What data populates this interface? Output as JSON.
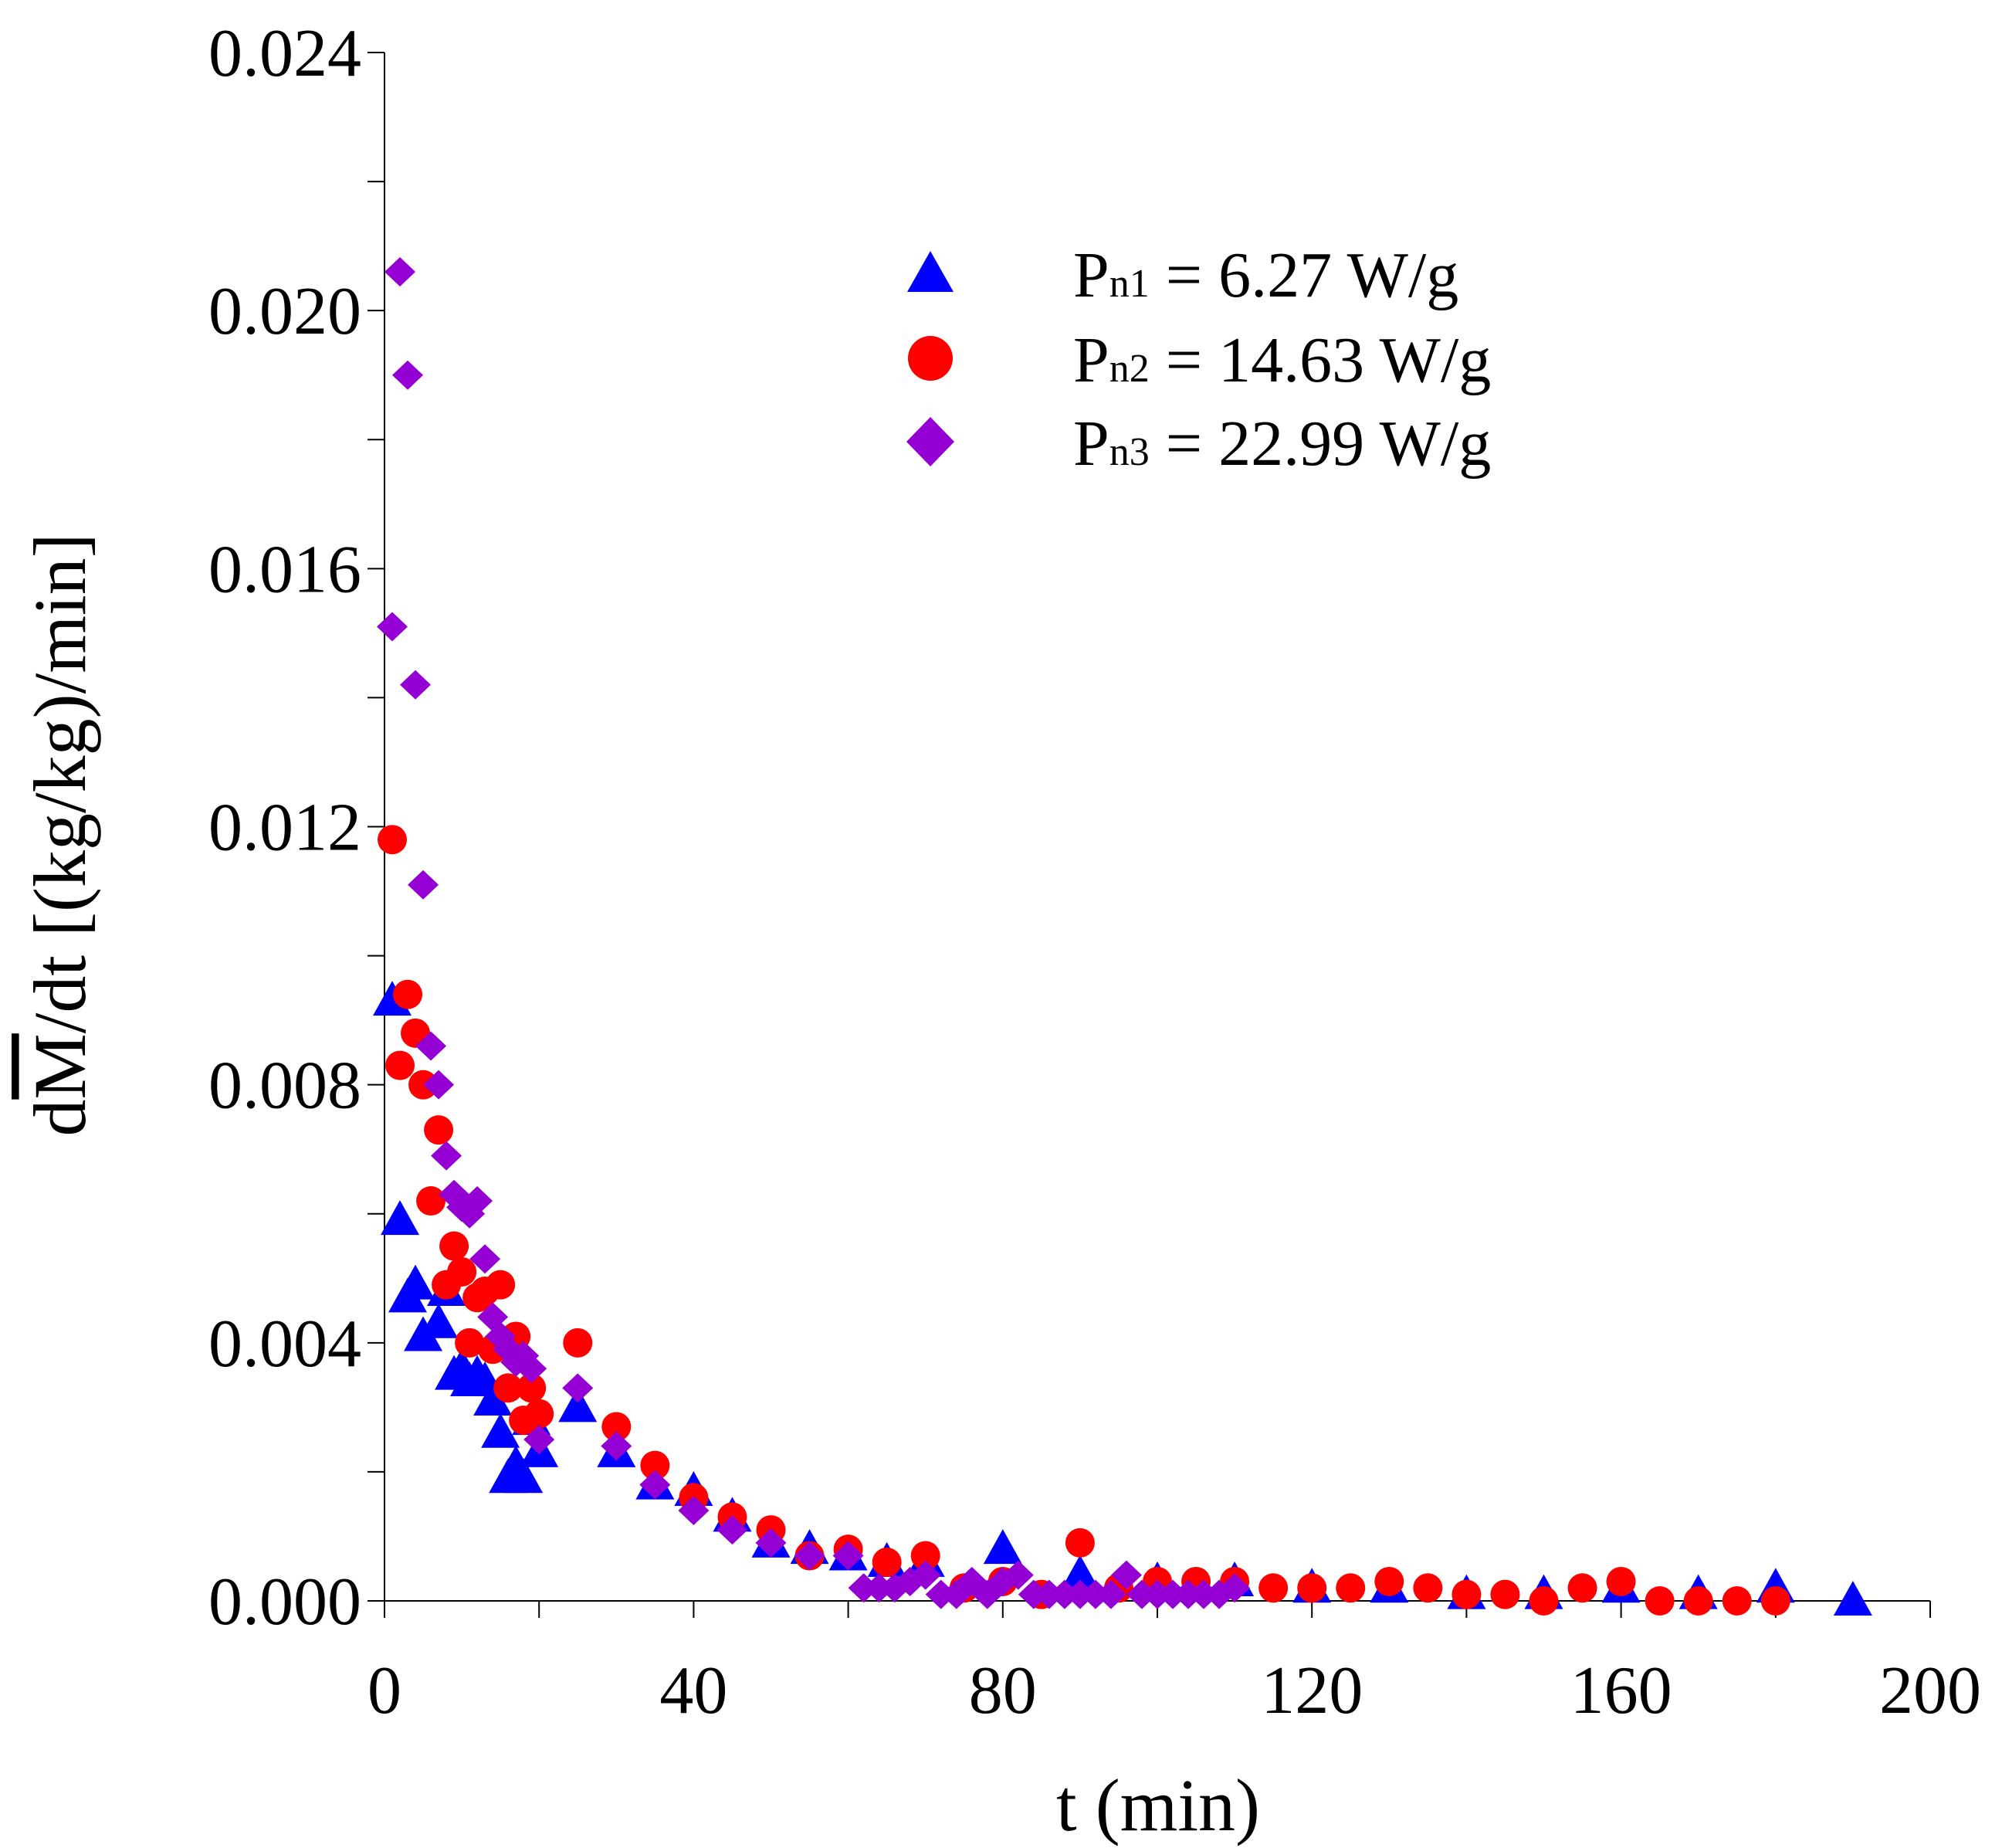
{
  "chart_data": {
    "type": "scatter",
    "title": "",
    "xlabel": "t (min)",
    "ylabel": "dM/dt [(kg/kg)/min]",
    "ylabel_parts": {
      "d1": "d",
      "m": "M",
      "rest": "/dt [(kg/kg)/min]"
    },
    "xlim": [
      0,
      200
    ],
    "ylim": [
      0,
      0.024
    ],
    "xticks": [
      0,
      40,
      80,
      120,
      160,
      200
    ],
    "xtick_labels": [
      "0",
      "40",
      "80",
      "120",
      "160",
      "200"
    ],
    "yticks": [
      0,
      0.004,
      0.008,
      0.012,
      0.016,
      0.02,
      0.024
    ],
    "ytick_labels": [
      "0.000",
      "0.004",
      "0.008",
      "0.012",
      "0.016",
      "0.020",
      "0.024"
    ],
    "legend_position": "top-right",
    "series": [
      {
        "name": "Pn1 = 6.27 W/g",
        "legend": {
          "p": "P",
          "sub": "n1",
          "rest": " = 6.27 W/g"
        },
        "marker": "triangle",
        "color": "#0000ff",
        "points": [
          [
            1,
            0.0093
          ],
          [
            2,
            0.0059
          ],
          [
            3,
            0.0047
          ],
          [
            4,
            0.0049
          ],
          [
            5,
            0.0041
          ],
          [
            7,
            0.0043
          ],
          [
            8,
            0.0048
          ],
          [
            9,
            0.0035
          ],
          [
            10,
            0.0036
          ],
          [
            11,
            0.0034
          ],
          [
            12,
            0.0035
          ],
          [
            13,
            0.0034
          ],
          [
            14,
            0.0031
          ],
          [
            15,
            0.0026
          ],
          [
            16,
            0.0019
          ],
          [
            17,
            0.0021
          ],
          [
            18,
            0.0019
          ],
          [
            19,
            0.0028
          ],
          [
            20,
            0.0023
          ],
          [
            25,
            0.003
          ],
          [
            30,
            0.0023
          ],
          [
            35,
            0.0018
          ],
          [
            40,
            0.0017
          ],
          [
            45,
            0.0013
          ],
          [
            50,
            0.0009
          ],
          [
            55,
            0.0008
          ],
          [
            60,
            0.0007
          ],
          [
            65,
            0.0006
          ],
          [
            70,
            0.0006
          ],
          [
            80,
            0.0008
          ],
          [
            90,
            0.0004
          ],
          [
            100,
            0.0003
          ],
          [
            110,
            0.0003
          ],
          [
            120,
            0.0002
          ],
          [
            130,
            0.0002
          ],
          [
            140,
            0.0001
          ],
          [
            150,
            0.0001
          ],
          [
            160,
            0.0002
          ],
          [
            170,
            0.0001
          ],
          [
            180,
            0.0002
          ],
          [
            190,
            0.0
          ]
        ]
      },
      {
        "name": "Pn2 = 14.63 W/g",
        "legend": {
          "p": "P",
          "sub": "n2",
          "rest": " = 14.63 W/g"
        },
        "marker": "circle",
        "color": "#ff0000",
        "points": [
          [
            1,
            0.0118
          ],
          [
            2,
            0.0083
          ],
          [
            3,
            0.0094
          ],
          [
            4,
            0.0088
          ],
          [
            5,
            0.008
          ],
          [
            6,
            0.0062
          ],
          [
            7,
            0.0073
          ],
          [
            8,
            0.0049
          ],
          [
            9,
            0.0055
          ],
          [
            10,
            0.0051
          ],
          [
            11,
            0.004
          ],
          [
            12,
            0.0047
          ],
          [
            13,
            0.0048
          ],
          [
            14,
            0.0039
          ],
          [
            15,
            0.0049
          ],
          [
            16,
            0.0033
          ],
          [
            17,
            0.0041
          ],
          [
            18,
            0.0028
          ],
          [
            19,
            0.0033
          ],
          [
            20,
            0.0029
          ],
          [
            25,
            0.004
          ],
          [
            30,
            0.0027
          ],
          [
            35,
            0.0021
          ],
          [
            40,
            0.0016
          ],
          [
            45,
            0.0013
          ],
          [
            50,
            0.0011
          ],
          [
            55,
            0.0007
          ],
          [
            60,
            0.0008
          ],
          [
            65,
            0.0006
          ],
          [
            70,
            0.0007
          ],
          [
            75,
            0.0002
          ],
          [
            80,
            0.0003
          ],
          [
            85,
            0.0001
          ],
          [
            90,
            0.0009
          ],
          [
            95,
            0.0002
          ],
          [
            100,
            0.0003
          ],
          [
            105,
            0.0003
          ],
          [
            110,
            0.0003
          ],
          [
            115,
            0.0002
          ],
          [
            120,
            0.0002
          ],
          [
            125,
            0.0002
          ],
          [
            130,
            0.0003
          ],
          [
            135,
            0.0002
          ],
          [
            140,
            0.0001
          ],
          [
            145,
            0.0001
          ],
          [
            150,
            0.0
          ],
          [
            155,
            0.0002
          ],
          [
            160,
            0.0003
          ],
          [
            165,
            0.0
          ],
          [
            170,
            0.0
          ],
          [
            175,
            0.0
          ],
          [
            180,
            0.0
          ]
        ]
      },
      {
        "name": "Pn3 = 22.99 W/g",
        "legend": {
          "p": "P",
          "sub": "n3",
          "rest": " = 22.99 W/g"
        },
        "marker": "diamond",
        "color": "#9400d3",
        "points": [
          [
            1,
            0.0151
          ],
          [
            2,
            0.0206
          ],
          [
            3,
            0.019
          ],
          [
            4,
            0.0142
          ],
          [
            5,
            0.0111
          ],
          [
            6,
            0.0086
          ],
          [
            7,
            0.008
          ],
          [
            8,
            0.0069
          ],
          [
            9,
            0.0063
          ],
          [
            10,
            0.0061
          ],
          [
            11,
            0.006
          ],
          [
            12,
            0.0062
          ],
          [
            13,
            0.0053
          ],
          [
            14,
            0.0044
          ],
          [
            15,
            0.0041
          ],
          [
            16,
            0.0039
          ],
          [
            17,
            0.0037
          ],
          [
            18,
            0.0038
          ],
          [
            19,
            0.0036
          ],
          [
            20,
            0.0025
          ],
          [
            25,
            0.0033
          ],
          [
            30,
            0.0024
          ],
          [
            35,
            0.0018
          ],
          [
            40,
            0.0014
          ],
          [
            45,
            0.0011
          ],
          [
            50,
            0.0009
          ],
          [
            55,
            0.0007
          ],
          [
            60,
            0.0007
          ],
          [
            62,
            0.0002
          ],
          [
            64,
            0.0002
          ],
          [
            66,
            0.0002
          ],
          [
            68,
            0.0003
          ],
          [
            70,
            0.0004
          ],
          [
            72,
            0.0001
          ],
          [
            74,
            0.0001
          ],
          [
            76,
            0.0003
          ],
          [
            78,
            0.0001
          ],
          [
            80,
            0.0003
          ],
          [
            82,
            0.0004
          ],
          [
            84,
            0.0001
          ],
          [
            86,
            0.0001
          ],
          [
            88,
            0.0001
          ],
          [
            90,
            0.0001
          ],
          [
            92,
            0.0001
          ],
          [
            94,
            0.0001
          ],
          [
            96,
            0.0004
          ],
          [
            98,
            0.0001
          ],
          [
            100,
            0.0001
          ],
          [
            102,
            0.0001
          ],
          [
            104,
            0.0001
          ],
          [
            106,
            0.0001
          ],
          [
            108,
            0.0001
          ],
          [
            110,
            0.0002
          ]
        ]
      }
    ]
  }
}
